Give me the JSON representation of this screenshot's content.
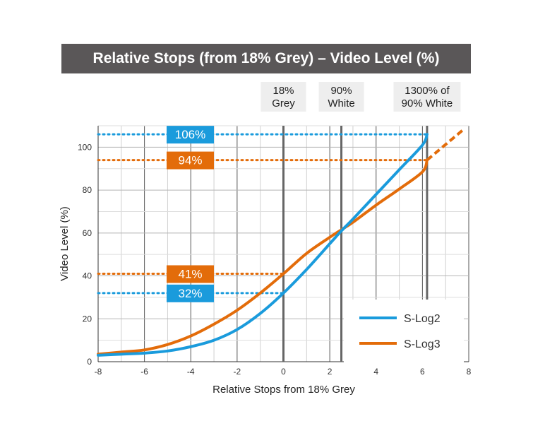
{
  "chart_data": {
    "type": "line",
    "title": "Relative Stops (from 18% Grey) – Video Level (%)",
    "xlabel": "Relative Stops from 18% Grey",
    "ylabel": "Video Level (%)",
    "xlim": [
      -8,
      8
    ],
    "ylim": [
      0,
      110
    ],
    "x_ticks": [
      "-8",
      "-6",
      "-4",
      "-2",
      "0",
      "2",
      "4",
      "6",
      "8"
    ],
    "y_ticks": [
      "0",
      "20",
      "40",
      "60",
      "80",
      "100"
    ],
    "grid": true,
    "legend_position": "bottom-right",
    "series": [
      {
        "name": "S-Log2",
        "color": "#1a9bdc",
        "x": [
          -8,
          -7,
          -6,
          -5,
          -4,
          -3,
          -2,
          -1,
          0,
          1,
          2,
          2.5,
          3,
          4,
          5,
          6,
          6.2
        ],
        "y": [
          3,
          3.5,
          4,
          5,
          7,
          10,
          15,
          22.5,
          32,
          43,
          55,
          61,
          66.5,
          78,
          89.5,
          101,
          106
        ]
      },
      {
        "name": "S-Log3",
        "color": "#e36c0a",
        "x": [
          -8,
          -7,
          -6,
          -5,
          -4,
          -3,
          -2,
          -1,
          0,
          1,
          2,
          2.5,
          3,
          4,
          5,
          6,
          6.2
        ],
        "y": [
          3.5,
          4.5,
          5.5,
          8,
          12,
          17.5,
          24,
          32,
          41,
          50.5,
          58,
          61.5,
          65,
          73,
          80.5,
          88.5,
          94
        ],
        "extension": {
          "x": [
            6.2,
            7.8
          ],
          "y": [
            94,
            108.5
          ],
          "style": "dashed"
        }
      }
    ],
    "reference_lines": [
      {
        "x": 0,
        "label_lines": [
          "18%",
          "Grey"
        ]
      },
      {
        "x": 2.5,
        "label_lines": [
          "90%",
          "White"
        ]
      },
      {
        "x": 6.2,
        "label_lines": [
          "1300% of",
          "90% White"
        ]
      }
    ],
    "level_markers": [
      {
        "y": 106,
        "label": "106%",
        "color": "#1a9bdc"
      },
      {
        "y": 94,
        "label": "94%",
        "color": "#e36c0a"
      },
      {
        "y": 41,
        "label": "41%",
        "color": "#e36c0a"
      },
      {
        "y": 32,
        "label": "32%",
        "color": "#1a9bdc"
      }
    ]
  }
}
